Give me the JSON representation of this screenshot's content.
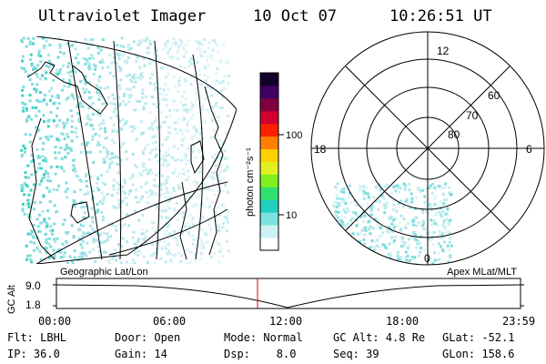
{
  "header": {
    "instrument": "Ultraviolet Imager",
    "date": "10 Oct 07",
    "time": "10:26:51 UT"
  },
  "colorbar": {
    "unit_label": "photon cm⁻²s⁻¹",
    "ticks": [
      "100",
      "10"
    ],
    "scale": "log",
    "colors": [
      "#ffffff",
      "#ccf2f5",
      "#7fe0e0",
      "#20d0c0",
      "#30e070",
      "#80f020",
      "#e0f020",
      "#ffd000",
      "#ff8000",
      "#ff2000",
      "#d00030",
      "#800040",
      "#400060",
      "#10002a"
    ]
  },
  "polar_plot": {
    "mlt_labels": [
      "12",
      "18",
      "6",
      "0"
    ],
    "mlat_labels": [
      "60",
      "70",
      "80"
    ]
  },
  "altitude_strip": {
    "left_title": "Geographic Lat/Lon",
    "right_title": "Apex MLat/MLT",
    "axis_label": "GC Alt",
    "y_ticks": [
      "9.0",
      "1.8"
    ],
    "x_ticks": [
      "00:00",
      "06:00",
      "12:00",
      "18:00",
      "23:59"
    ],
    "marker_color": "#e00000"
  },
  "status": {
    "row1": [
      {
        "label": "Flt: LBHL"
      },
      {
        "label": "Door: Open"
      },
      {
        "label": "Mode: Normal"
      },
      {
        "label": "GC Alt: 4.8 Re"
      },
      {
        "label": "GLat: -52.1"
      }
    ],
    "row2": [
      {
        "label": "IP: 36.0"
      },
      {
        "label": "Gain: 14"
      },
      {
        "label": "Dsp:    8.0"
      },
      {
        "label": "Seq: 39"
      },
      {
        "label": "GLon: 158.6"
      }
    ]
  }
}
